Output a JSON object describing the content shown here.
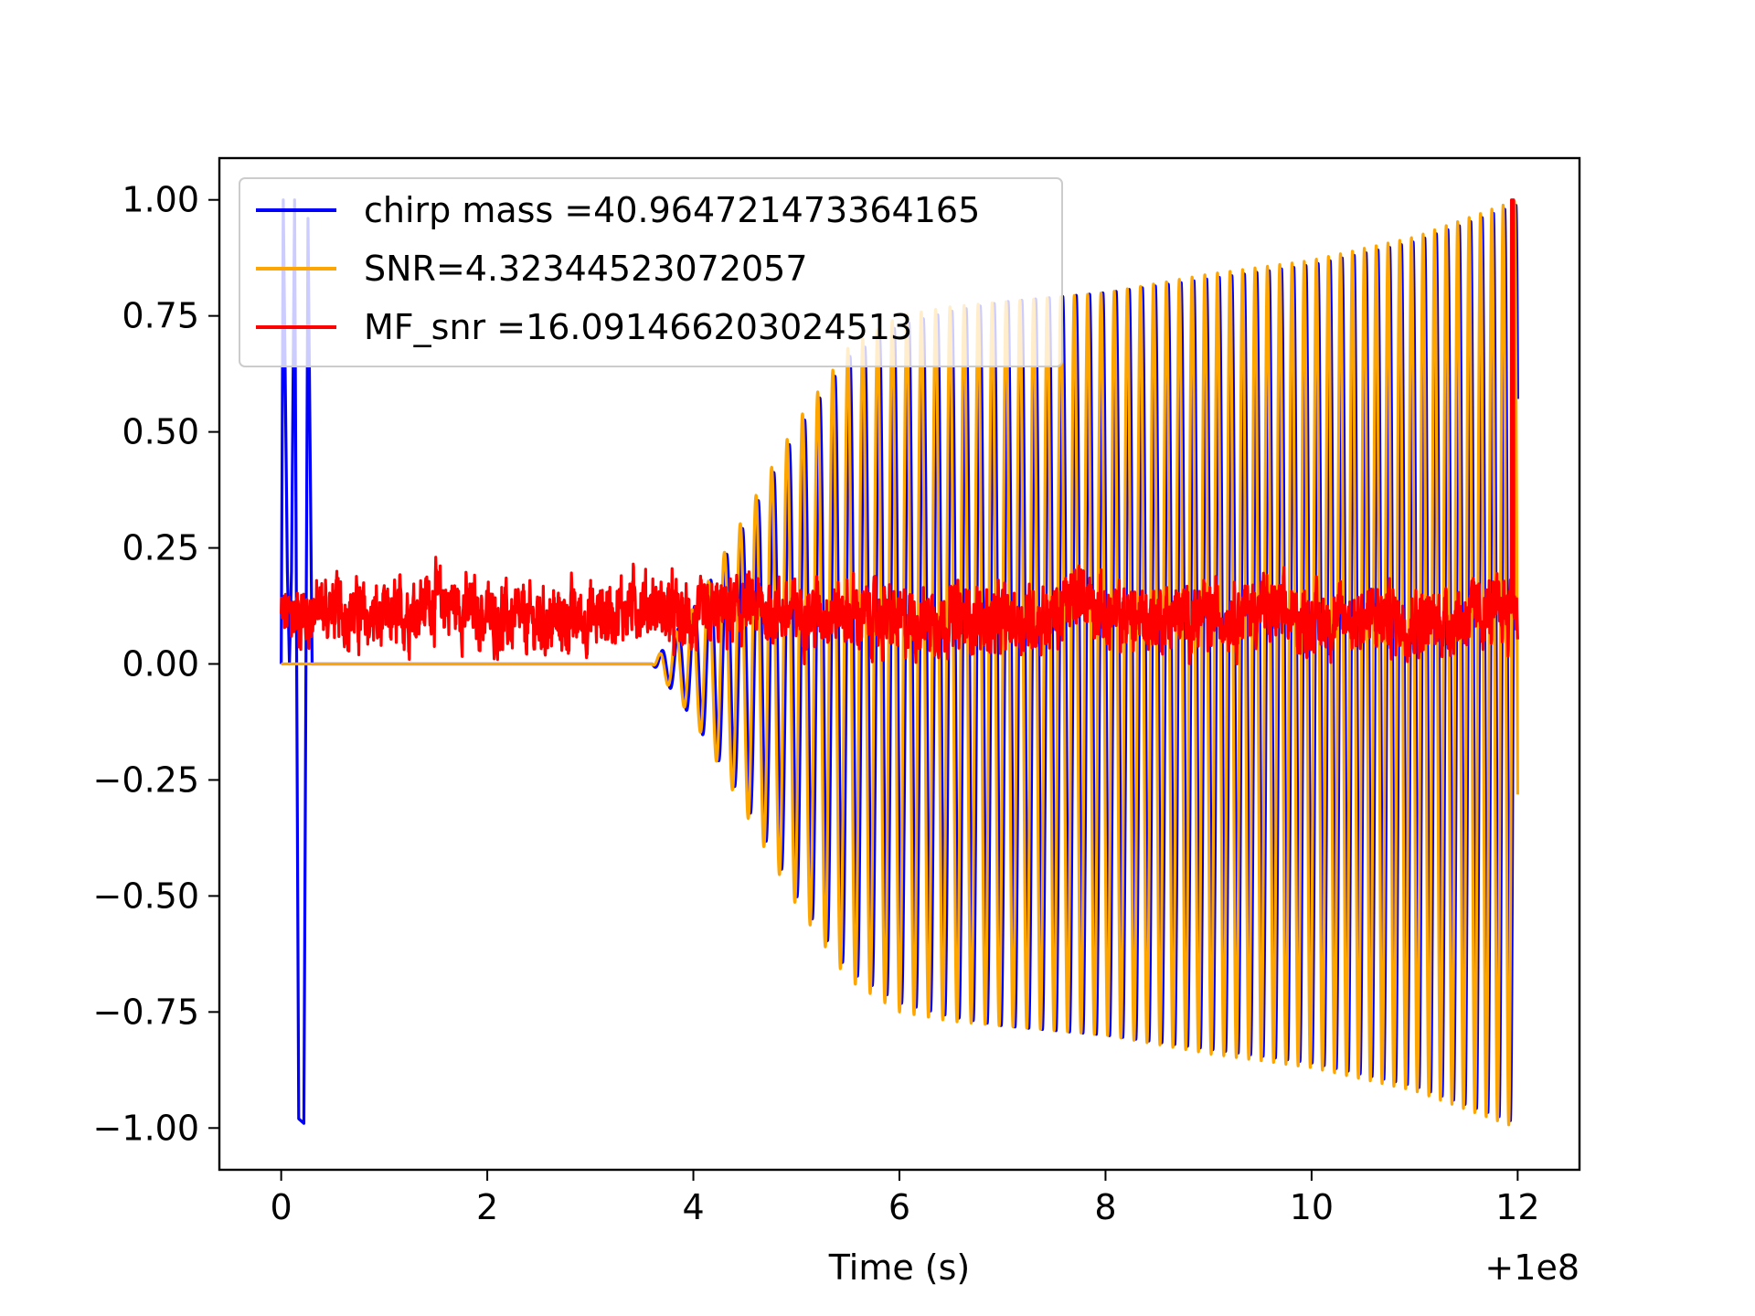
{
  "chart_data": {
    "type": "line",
    "title": "",
    "xlabel": "Time (s)",
    "ylabel": "",
    "x_offset_label": "+1e8",
    "xlim": [
      -0.6,
      12.6
    ],
    "ylim": [
      -1.09,
      1.09
    ],
    "xticks": [
      0,
      2,
      4,
      6,
      8,
      10,
      12
    ],
    "xtick_labels": [
      "0",
      "2",
      "4",
      "6",
      "8",
      "10",
      "12"
    ],
    "yticks": [
      1.0,
      0.75,
      0.5,
      0.25,
      0.0,
      -0.25,
      -0.5,
      -0.75,
      -1.0
    ],
    "ytick_labels": [
      "1.00",
      "0.75",
      "0.50",
      "0.25",
      "0.00",
      "−0.25",
      "−0.50",
      "−0.75",
      "−1.00"
    ],
    "grid": false,
    "legend_position": "upper-left",
    "series": [
      {
        "name": "chirp mass =40.964721473364165",
        "color": "#0000ff",
        "description": "whitened chirp template",
        "x_range": [
          0.0,
          12.0
        ],
        "onset_x": 3.6,
        "envelope": [
          [
            0.0,
            0.0
          ],
          [
            3.6,
            0.0
          ],
          [
            4.0,
            0.12
          ],
          [
            4.5,
            0.3
          ],
          [
            5.0,
            0.5
          ],
          [
            5.5,
            0.66
          ],
          [
            6.0,
            0.73
          ],
          [
            6.5,
            0.76
          ],
          [
            7.0,
            0.78
          ],
          [
            8.0,
            0.8
          ],
          [
            9.0,
            0.83
          ],
          [
            10.0,
            0.86
          ],
          [
            11.0,
            0.91
          ],
          [
            11.5,
            0.95
          ],
          [
            12.0,
            0.99
          ]
        ],
        "initial_spike": [
          [
            0.0,
            0.0
          ],
          [
            0.02,
            1.0
          ],
          [
            0.06,
            0.2
          ],
          [
            0.08,
            0.0
          ],
          [
            0.1,
            0.2
          ],
          [
            0.13,
            1.0
          ],
          [
            0.17,
            -0.98
          ],
          [
            0.22,
            -0.99
          ],
          [
            0.26,
            0.96
          ],
          [
            0.3,
            0.0
          ]
        ]
      },
      {
        "name": "SNR=4.32344523072057",
        "color": "#ffa500",
        "description": "noisy strain, phase-shifted chirp",
        "x_range": [
          0.0,
          12.0
        ],
        "onset_x": 3.6,
        "envelope": [
          [
            0.0,
            0.0
          ],
          [
            3.6,
            0.0
          ],
          [
            4.0,
            0.12
          ],
          [
            4.5,
            0.32
          ],
          [
            5.0,
            0.52
          ],
          [
            5.5,
            0.68
          ],
          [
            6.0,
            0.75
          ],
          [
            6.5,
            0.77
          ],
          [
            7.0,
            0.78
          ],
          [
            8.0,
            0.8
          ],
          [
            9.0,
            0.84
          ],
          [
            10.0,
            0.87
          ],
          [
            11.0,
            0.92
          ],
          [
            11.5,
            0.96
          ],
          [
            12.0,
            1.0
          ]
        ]
      },
      {
        "name": "MF_snr =16.091466203024513",
        "color": "#ff0000",
        "description": "matched filter output, noisy band around 0.05-0.2 with a spike to 1.0 at t=11.95",
        "x_range": [
          0.0,
          12.0
        ],
        "baseline_profile": [
          [
            0.0,
            0.1
          ],
          [
            0.5,
            0.12
          ],
          [
            1.0,
            0.09
          ],
          [
            1.5,
            0.14
          ],
          [
            2.0,
            0.1
          ],
          [
            2.5,
            0.09
          ],
          [
            3.0,
            0.1
          ],
          [
            3.5,
            0.13
          ],
          [
            4.0,
            0.09
          ],
          [
            4.5,
            0.12
          ],
          [
            5.0,
            0.11
          ],
          [
            5.5,
            0.11
          ],
          [
            6.0,
            0.09
          ],
          [
            6.5,
            0.1
          ],
          [
            7.0,
            0.09
          ],
          [
            7.5,
            0.1
          ],
          [
            7.8,
            0.16
          ],
          [
            8.0,
            0.1
          ],
          [
            8.5,
            0.1
          ],
          [
            9.0,
            0.1
          ],
          [
            9.5,
            0.12
          ],
          [
            10.0,
            0.09
          ],
          [
            10.5,
            0.1
          ],
          [
            11.0,
            0.09
          ],
          [
            11.5,
            0.1
          ],
          [
            12.0,
            0.12
          ]
        ],
        "band_halfwidth": 0.07,
        "spike_x": 11.95,
        "spike_y": 1.0
      }
    ]
  }
}
